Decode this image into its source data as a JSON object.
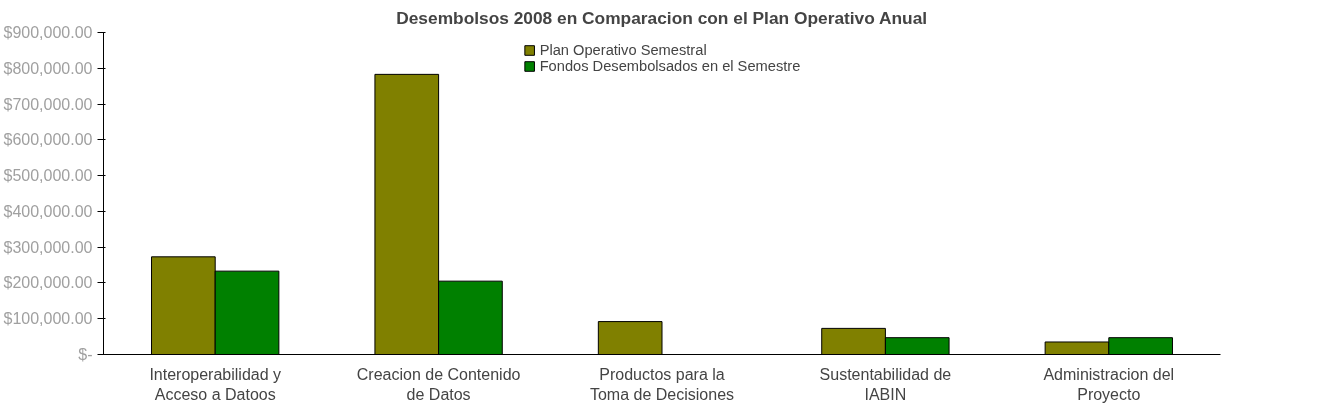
{
  "chart_data": {
    "type": "bar",
    "title": "Desembolsos 2008 en Comparacion con el Plan Operativo Anual",
    "categories": [
      "Interoperabilidad y Acceso a Datoos",
      "Creacion de Contenido de Datos",
      "Productos para la Toma de Decisiones",
      "Sustentabilidad de IABIN",
      "Administracion del Proyecto"
    ],
    "series": [
      {
        "name": "Plan Operativo Semestral",
        "color": "#808000",
        "values": [
          273000,
          783000,
          92000,
          73000,
          35000
        ]
      },
      {
        "name": "Fondos Desembolsados en el Semestre",
        "color": "#008000",
        "values": [
          233000,
          205000,
          null,
          47000,
          47000
        ]
      }
    ],
    "ylim": [
      0,
      900000
    ],
    "yticks": [
      {
        "value": 0,
        "label": "$-"
      },
      {
        "value": 100000,
        "label": "$100,000.00"
      },
      {
        "value": 200000,
        "label": "$200,000.00"
      },
      {
        "value": 300000,
        "label": "$300,000.00"
      },
      {
        "value": 400000,
        "label": "$400,000.00"
      },
      {
        "value": 500000,
        "label": "$500,000.00"
      },
      {
        "value": 600000,
        "label": "$600,000.00"
      },
      {
        "value": 700000,
        "label": "$700,000.00"
      },
      {
        "value": 800000,
        "label": "$800,000.00"
      },
      {
        "value": 900000,
        "label": "$900,000.00"
      }
    ],
    "grid": false,
    "legend": "top"
  }
}
